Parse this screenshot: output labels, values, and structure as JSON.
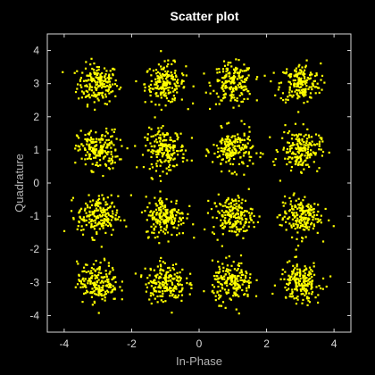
{
  "chart_data": {
    "type": "scatter",
    "title": "Scatter plot",
    "xlabel": "In-Phase",
    "ylabel": "Quadrature",
    "xlim": [
      -4.5,
      4.5
    ],
    "ylim": [
      -4.5,
      4.5
    ],
    "xticks": [
      -4,
      -2,
      0,
      2,
      4
    ],
    "yticks": [
      -4,
      -3,
      -2,
      -1,
      0,
      1,
      2,
      3,
      4
    ],
    "grid": false,
    "marker_color": "#ffff00",
    "background_color": "#000000",
    "axis_color": "#d9d9d9",
    "constellation_points": [
      {
        "x": -3,
        "y": 3
      },
      {
        "x": -1,
        "y": 3
      },
      {
        "x": 1,
        "y": 3
      },
      {
        "x": 3,
        "y": 3
      },
      {
        "x": -3,
        "y": 1
      },
      {
        "x": -1,
        "y": 1
      },
      {
        "x": 1,
        "y": 1
      },
      {
        "x": 3,
        "y": 1
      },
      {
        "x": -3,
        "y": -1
      },
      {
        "x": -1,
        "y": -1
      },
      {
        "x": 1,
        "y": -1
      },
      {
        "x": 3,
        "y": -1
      },
      {
        "x": -3,
        "y": -3
      },
      {
        "x": -1,
        "y": -3
      },
      {
        "x": 1,
        "y": -3
      },
      {
        "x": 3,
        "y": -3
      }
    ],
    "noise_std": 0.3,
    "samples_per_point": 190
  }
}
